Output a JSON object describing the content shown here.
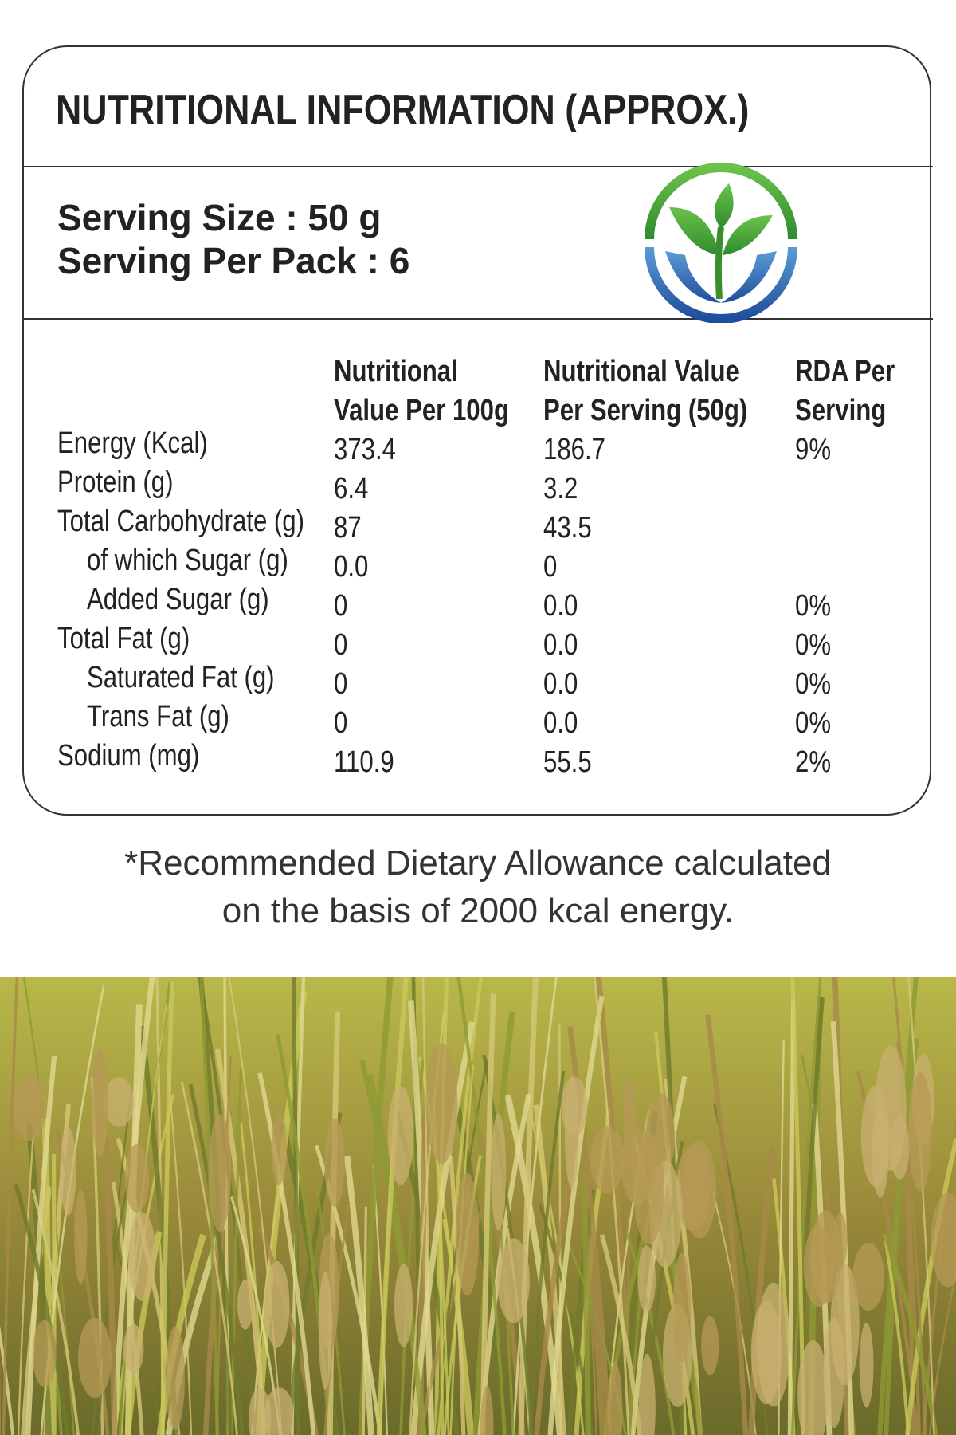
{
  "header": {
    "title": "NUTRITIONAL INFORMATION (APPROX.)"
  },
  "serving": {
    "size": "Serving Size : 50 g",
    "per_pack": "Serving Per Pack : 6"
  },
  "table": {
    "columns": [
      [
        "Nutritional",
        "Value Per 100g"
      ],
      [
        "Nutritional Value",
        "Per Serving (50g)"
      ],
      [
        "RDA Per",
        "Serving"
      ]
    ],
    "rows": [
      [
        "Energy (Kcal)",
        "373.4",
        "186.7",
        "9%"
      ],
      [
        "Protein (g)",
        "6.4",
        "3.2",
        null
      ],
      [
        "Total Carbohydrate (g)",
        "87",
        "43.5",
        null
      ],
      [
        "of which Sugar (g)",
        "0.0",
        "0",
        null
      ],
      [
        "Added Sugar (g)",
        "0",
        "0.0",
        "0%"
      ],
      [
        "Total Fat (g)",
        "0",
        "0.0",
        "0%"
      ],
      [
        "Saturated Fat (g)",
        "0",
        "0.0",
        "0%"
      ],
      [
        "Trans Fat (g)",
        "0",
        "0.0",
        "0%"
      ],
      [
        "Sodium (mg)",
        "110.9",
        "55.5",
        "2%"
      ]
    ]
  },
  "footnote": [
    "*Recommended Dietary Allowance calculated",
    "on the basis of 2000 kcal energy."
  ]
}
